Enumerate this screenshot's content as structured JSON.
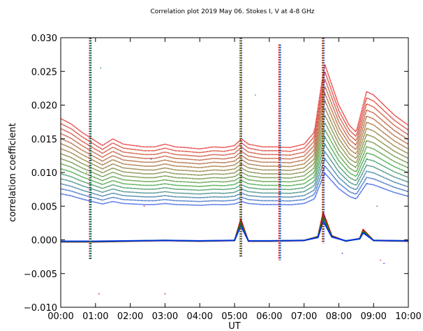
{
  "chart_data": {
    "type": "scatter",
    "title": "Correlation plot 2019 May 06. Stokes I, V at 4-8 GHz",
    "xlabel": "UT",
    "ylabel": "correlation coefficient",
    "xlim": [
      0,
      10
    ],
    "ylim": [
      -0.01,
      0.03
    ],
    "grid": false,
    "x_tick_values": [
      0,
      1,
      2,
      3,
      4,
      5,
      6,
      7,
      8,
      9,
      10
    ],
    "x_tick_labels": [
      "00:00",
      "01:00",
      "02:00",
      "03:00",
      "04:00",
      "05:00",
      "06:00",
      "07:00",
      "08:00",
      "09:00",
      "10:00"
    ],
    "y_tick_values": [
      -0.01,
      -0.005,
      0.0,
      0.005,
      0.01,
      0.015,
      0.02,
      0.025,
      0.03
    ],
    "y_tick_labels": [
      "−0.010",
      "−0.005",
      "0.000",
      "0.005",
      "0.010",
      "0.015",
      "0.020",
      "0.025",
      "0.030"
    ],
    "stokes_i_profile": {
      "x": [
        0.0,
        0.3,
        0.6,
        0.9,
        1.2,
        1.5,
        1.8,
        2.1,
        2.4,
        2.7,
        3.0,
        3.3,
        3.6,
        4.0,
        4.4,
        4.7,
        5.0,
        5.2,
        5.4,
        5.8,
        6.2,
        6.6,
        7.0,
        7.3,
        7.5,
        7.6,
        7.8,
        8.0,
        8.3,
        8.5,
        8.65,
        8.8,
        9.0,
        9.3,
        9.6,
        10.0
      ],
      "y": [
        0.018,
        0.0172,
        0.016,
        0.015,
        0.014,
        0.015,
        0.0142,
        0.014,
        0.0138,
        0.0138,
        0.0142,
        0.0138,
        0.0137,
        0.0135,
        0.0138,
        0.0137,
        0.014,
        0.015,
        0.0142,
        0.0138,
        0.0138,
        0.0137,
        0.0142,
        0.016,
        0.023,
        0.026,
        0.023,
        0.02,
        0.017,
        0.016,
        0.019,
        0.022,
        0.0215,
        0.02,
        0.0185,
        0.017
      ]
    },
    "stokes_i_bands": {
      "count": 16,
      "low_band_fraction": 0.38,
      "colors": [
        "#0033dd",
        "#0b8a0b",
        "#8b4a00",
        "#e00000"
      ]
    },
    "stokes_v_baseline": {
      "x": [
        0.0,
        1.0,
        2.0,
        3.0,
        4.0,
        5.0,
        5.18,
        5.4,
        6.0,
        7.0,
        7.4,
        7.55,
        7.8,
        8.2,
        8.6,
        8.7,
        9.0,
        10.0
      ],
      "y": [
        -0.0003,
        -0.0003,
        -0.0002,
        -0.0001,
        -0.0002,
        -0.0001,
        0.003,
        -0.0002,
        -0.0002,
        -0.0001,
        0.0005,
        0.004,
        0.0006,
        -0.0002,
        0.0002,
        0.0015,
        -0.0001,
        -0.0002
      ]
    },
    "spikes": [
      {
        "x": 0.85,
        "ymin": -0.003,
        "ymax": 0.03,
        "colors": [
          "#e00000",
          "#0b8a0b",
          "#0033dd"
        ]
      },
      {
        "x": 5.18,
        "ymin": -0.0025,
        "ymax": 0.03,
        "colors": [
          "#e00000",
          "#0b8a0b",
          "#0033dd"
        ]
      },
      {
        "x": 6.3,
        "ymin": -0.003,
        "ymax": 0.029,
        "colors": [
          "#e00000",
          "#0b8a0b",
          "#0033dd"
        ]
      },
      {
        "x": 7.55,
        "ymin": -0.0005,
        "ymax": 0.03,
        "colors": [
          "#e00000",
          "#0b8a0b",
          "#0033dd"
        ]
      }
    ],
    "scatter_outliers": [
      {
        "x": 1.1,
        "y": -0.008
      },
      {
        "x": 1.15,
        "y": 0.0255
      },
      {
        "x": 2.6,
        "y": 0.012
      },
      {
        "x": 3.0,
        "y": -0.008
      },
      {
        "x": 5.6,
        "y": 0.0215
      },
      {
        "x": 8.1,
        "y": -0.002
      },
      {
        "x": 9.2,
        "y": -0.003
      },
      {
        "x": 9.1,
        "y": 0.005
      },
      {
        "x": 9.3,
        "y": -0.0035
      },
      {
        "x": 2.4,
        "y": 0.005
      },
      {
        "x": 0.75,
        "y": 0.01
      }
    ]
  }
}
